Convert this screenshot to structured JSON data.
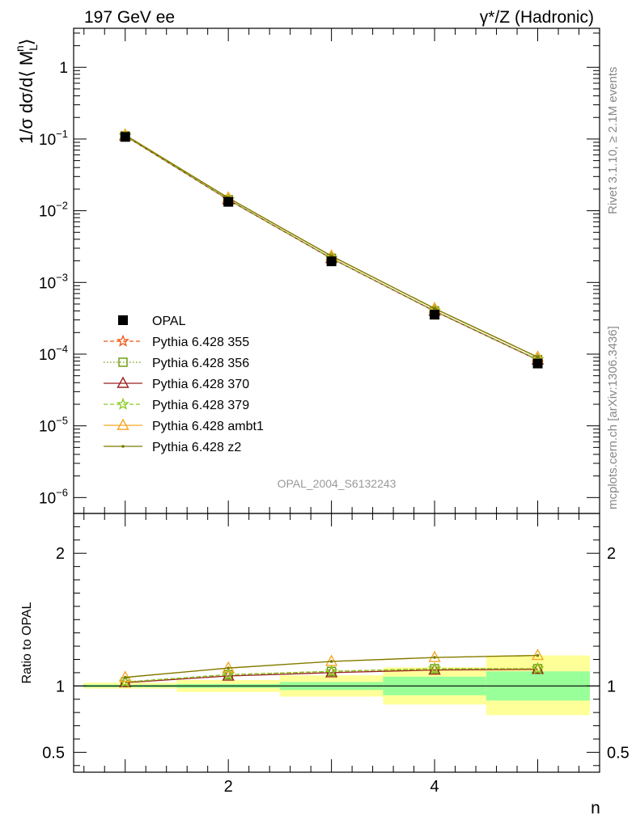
{
  "header": {
    "left": "197 GeV ee",
    "right": "γ*/Z (Hadronic)"
  },
  "side_text": {
    "top": "Rivet 3.1.10, ≥ 2.1M events",
    "bottom": "mcplots.cern.ch [arXiv:1306.3436]"
  },
  "watermark": "OPAL_2004_S6132243",
  "chart_data": [
    {
      "type": "line",
      "panel": "main",
      "ylabel": "1/σ dσ/d⟨ M",
      "ylabel_sub": "L",
      "ylabel_sup": "n",
      "ylabel_tail": "⟩",
      "yscale": "log",
      "ylim": [
        6e-07,
        3.5
      ],
      "xlim": [
        0.5,
        5.6
      ],
      "y_tick_labels": [
        "1",
        "10",
        "10",
        "10",
        "10",
        "10",
        "10"
      ],
      "y_tick_exponents": [
        "",
        "−1",
        "−2",
        "−3",
        "−4",
        "−5",
        "−6"
      ],
      "x": [
        1,
        2,
        3,
        4,
        5
      ],
      "series": [
        {
          "name": "OPAL",
          "values": [
            0.107,
            0.0133,
            0.00197,
            0.000355,
            7.4e-05
          ],
          "color": "#000000",
          "marker": "square"
        },
        {
          "name": "Pythia 6.428 355",
          "values": [
            0.111,
            0.0143,
            0.00218,
            0.000402,
            8.4e-05
          ],
          "color": "#ee5511",
          "marker": "star"
        },
        {
          "name": "Pythia 6.428 356",
          "values": [
            0.111,
            0.0143,
            0.00218,
            0.000402,
            8.4e-05
          ],
          "color": "#669900",
          "marker": "square-open"
        },
        {
          "name": "Pythia 6.428 370",
          "values": [
            0.1105,
            0.0142,
            0.00216,
            0.000398,
            8.3e-05
          ],
          "color": "#992222",
          "marker": "triangle-open"
        },
        {
          "name": "Pythia 6.428 379",
          "values": [
            0.111,
            0.0143,
            0.00218,
            0.000402,
            8.4e-05
          ],
          "color": "#88cc22",
          "marker": "star"
        },
        {
          "name": "Pythia 6.428 ambt1",
          "values": [
            0.114,
            0.0151,
            0.00234,
            0.000433,
            9.1e-05
          ],
          "color": "#f5a623",
          "marker": "triangle-open"
        },
        {
          "name": "Pythia 6.428 z2",
          "values": [
            0.114,
            0.0151,
            0.00234,
            0.000433,
            9.1e-05
          ],
          "color": "#7a7a00",
          "marker": "dot"
        }
      ]
    },
    {
      "type": "line",
      "panel": "ratio",
      "ylabel": "Ratio to OPAL",
      "xlabel": "n",
      "ylim": [
        0.35,
        2.3
      ],
      "xlim": [
        0.5,
        5.6
      ],
      "y_ticks": [
        0.5,
        1,
        2
      ],
      "y_tick_labels": [
        "0.5",
        "1",
        "2"
      ],
      "x_ticks": [
        2,
        4
      ],
      "x_tick_labels": [
        "2",
        "4"
      ],
      "x": [
        1,
        2,
        3,
        4,
        5
      ],
      "bands": [
        {
          "x_low": 0.5,
          "x_high": 1.5,
          "stat_low": 0.99,
          "stat_high": 1.01,
          "total_low": 0.98,
          "total_high": 1.025
        },
        {
          "x_low": 1.5,
          "x_high": 2.5,
          "stat_low": 0.985,
          "stat_high": 1.015,
          "total_low": 0.955,
          "total_high": 1.045
        },
        {
          "x_low": 2.5,
          "x_high": 3.5,
          "stat_low": 0.97,
          "stat_high": 1.03,
          "total_low": 0.92,
          "total_high": 1.08
        },
        {
          "x_low": 3.5,
          "x_high": 4.5,
          "stat_low": 0.93,
          "stat_high": 1.07,
          "total_low": 0.86,
          "total_high": 1.14
        },
        {
          "x_low": 4.5,
          "x_high": 5.6,
          "stat_low": 0.89,
          "stat_high": 1.11,
          "total_low": 0.78,
          "total_high": 1.23
        }
      ],
      "series": [
        {
          "name": "Pythia 6.428 355",
          "values": [
            1.03,
            1.085,
            1.11,
            1.13,
            1.13
          ],
          "color": "#ee5511",
          "marker": "star"
        },
        {
          "name": "Pythia 6.428 356",
          "values": [
            1.03,
            1.085,
            1.11,
            1.13,
            1.13
          ],
          "color": "#669900",
          "marker": "square-open"
        },
        {
          "name": "Pythia 6.428 370",
          "values": [
            1.025,
            1.075,
            1.1,
            1.12,
            1.125
          ],
          "color": "#992222",
          "marker": "triangle-open"
        },
        {
          "name": "Pythia 6.428 379",
          "values": [
            1.03,
            1.085,
            1.11,
            1.13,
            1.13
          ],
          "color": "#88cc22",
          "marker": "star"
        },
        {
          "name": "Pythia 6.428 ambt1",
          "values": [
            1.065,
            1.135,
            1.185,
            1.215,
            1.23
          ],
          "color": "#f5a623",
          "marker": "triangle-open"
        },
        {
          "name": "Pythia 6.428 z2",
          "values": [
            1.065,
            1.135,
            1.185,
            1.215,
            1.23
          ],
          "color": "#7a7a00",
          "marker": "dot"
        }
      ]
    }
  ],
  "legend": [
    {
      "label": "OPAL",
      "color": "#000000",
      "marker": "square",
      "line": "none"
    },
    {
      "label": "Pythia 6.428 355",
      "color": "#ee5511",
      "marker": "star",
      "line": "dashed"
    },
    {
      "label": "Pythia 6.428 356",
      "color": "#669900",
      "marker": "square-open",
      "line": "dotted"
    },
    {
      "label": "Pythia 6.428 370",
      "color": "#992222",
      "marker": "triangle-open",
      "line": "solid"
    },
    {
      "label": "Pythia 6.428 379",
      "color": "#88cc22",
      "marker": "star",
      "line": "dashed"
    },
    {
      "label": "Pythia 6.428 ambt1",
      "color": "#f5a623",
      "marker": "triangle-open",
      "line": "solid"
    },
    {
      "label": "Pythia 6.428 z2",
      "color": "#7a7a00",
      "marker": "dot",
      "line": "solid"
    }
  ]
}
